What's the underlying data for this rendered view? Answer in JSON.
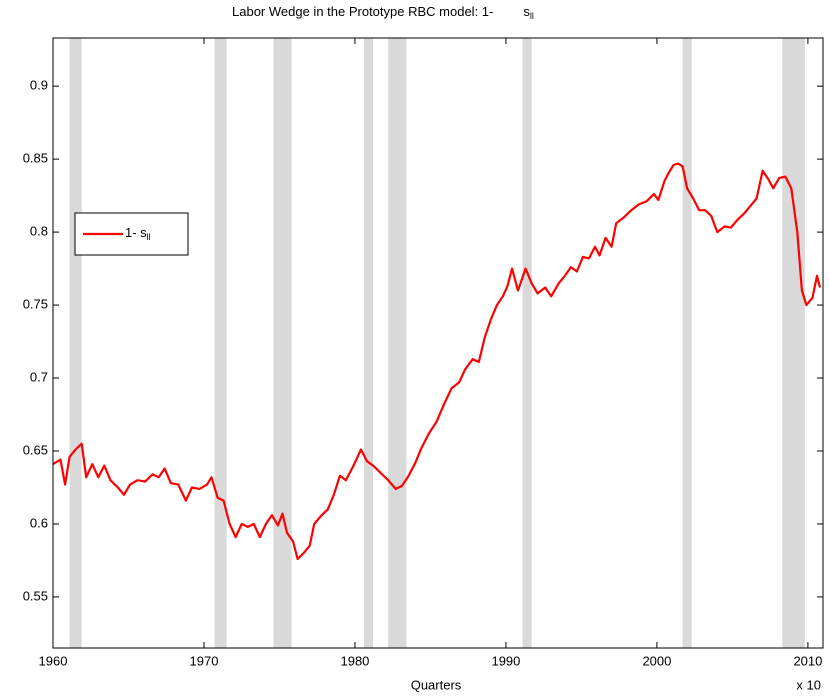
{
  "chart_data": {
    "type": "line",
    "title": "Labor Wedge in the Prototype RBC model: 1-",
    "title_symbol": "s",
    "title_subscript": "ll",
    "x_label": "Quarters",
    "x_annotation": "x 10",
    "xlim": [
      1960,
      2011
    ],
    "xticks": [
      1960,
      1970,
      1980,
      1990,
      2000,
      2010
    ],
    "ylim": [
      0.515,
      0.933
    ],
    "yticks": [
      0.55,
      0.6,
      0.65,
      0.7,
      0.75,
      0.8,
      0.85,
      0.9
    ],
    "grid": false,
    "legend": "left",
    "shade_color": "#d9d9d9",
    "shaded_periods": [
      [
        1961.1,
        1961.9
      ],
      [
        1970.7,
        1971.5
      ],
      [
        1974.6,
        1975.8
      ],
      [
        1980.6,
        1981.2
      ],
      [
        1982.2,
        1983.4
      ],
      [
        1991.1,
        1991.7
      ],
      [
        2001.7,
        2002.3
      ],
      [
        2008.3,
        2009.8
      ]
    ],
    "x": [
      1960.0,
      1960.5,
      1960.8,
      1961.1,
      1961.5,
      1961.9,
      1962.2,
      1962.6,
      1963.0,
      1963.4,
      1963.8,
      1964.3,
      1964.7,
      1965.1,
      1965.6,
      1966.1,
      1966.6,
      1967.0,
      1967.4,
      1967.8,
      1968.3,
      1968.8,
      1969.2,
      1969.7,
      1970.2,
      1970.5,
      1970.9,
      1971.3,
      1971.7,
      1972.1,
      1972.5,
      1972.9,
      1973.3,
      1973.7,
      1974.1,
      1974.5,
      1974.9,
      1975.2,
      1975.5,
      1975.9,
      1976.2,
      1976.6,
      1977.0,
      1977.3,
      1977.8,
      1978.2,
      1978.6,
      1979.0,
      1979.4,
      1979.9,
      1980.4,
      1980.8,
      1981.2,
      1981.7,
      1982.2,
      1982.7,
      1983.1,
      1983.5,
      1984.0,
      1984.4,
      1984.9,
      1985.4,
      1985.9,
      1986.4,
      1986.9,
      1987.3,
      1987.8,
      1988.2,
      1988.6,
      1989.0,
      1989.4,
      1989.8,
      1990.1,
      1990.4,
      1990.8,
      1991.3,
      1991.7,
      1992.1,
      1992.6,
      1993.0,
      1993.5,
      1993.9,
      1994.3,
      1994.7,
      1995.1,
      1995.5,
      1995.9,
      1996.2,
      1996.6,
      1997.0,
      1997.3,
      1997.8,
      1998.3,
      1998.8,
      1999.3,
      1999.8,
      2000.1,
      2000.5,
      2000.8,
      2001.1,
      2001.4,
      2001.7,
      2002.0,
      2002.4,
      2002.8,
      2003.2,
      2003.6,
      2004.0,
      2004.5,
      2004.9,
      2005.3,
      2005.8,
      2006.2,
      2006.6,
      2007.0,
      2007.4,
      2007.7,
      2008.1,
      2008.5,
      2008.9,
      2009.3,
      2009.6,
      2009.9,
      2010.3,
      2010.6,
      2010.8
    ],
    "series": [
      {
        "name": "1- s",
        "name_subscript": "ll",
        "color": "#ff0000",
        "values": [
          0.641,
          0.644,
          0.627,
          0.646,
          0.651,
          0.655,
          0.632,
          0.641,
          0.632,
          0.64,
          0.63,
          0.625,
          0.62,
          0.627,
          0.63,
          0.629,
          0.634,
          0.632,
          0.638,
          0.628,
          0.627,
          0.616,
          0.625,
          0.624,
          0.627,
          0.632,
          0.618,
          0.616,
          0.6,
          0.591,
          0.6,
          0.598,
          0.6,
          0.591,
          0.6,
          0.606,
          0.599,
          0.607,
          0.594,
          0.588,
          0.576,
          0.58,
          0.585,
          0.6,
          0.606,
          0.61,
          0.62,
          0.633,
          0.63,
          0.64,
          0.651,
          0.643,
          0.64,
          0.635,
          0.63,
          0.624,
          0.626,
          0.632,
          0.642,
          0.652,
          0.662,
          0.67,
          0.682,
          0.693,
          0.697,
          0.706,
          0.713,
          0.711,
          0.728,
          0.74,
          0.75,
          0.756,
          0.763,
          0.775,
          0.76,
          0.775,
          0.765,
          0.758,
          0.762,
          0.756,
          0.765,
          0.77,
          0.776,
          0.773,
          0.783,
          0.782,
          0.79,
          0.784,
          0.796,
          0.79,
          0.806,
          0.81,
          0.815,
          0.819,
          0.821,
          0.826,
          0.822,
          0.835,
          0.841,
          0.846,
          0.847,
          0.845,
          0.83,
          0.823,
          0.815,
          0.815,
          0.811,
          0.8,
          0.804,
          0.803,
          0.808,
          0.813,
          0.818,
          0.823,
          0.842,
          0.836,
          0.83,
          0.837,
          0.838,
          0.83,
          0.8,
          0.76,
          0.75,
          0.755,
          0.77,
          0.762
        ]
      }
    ]
  }
}
